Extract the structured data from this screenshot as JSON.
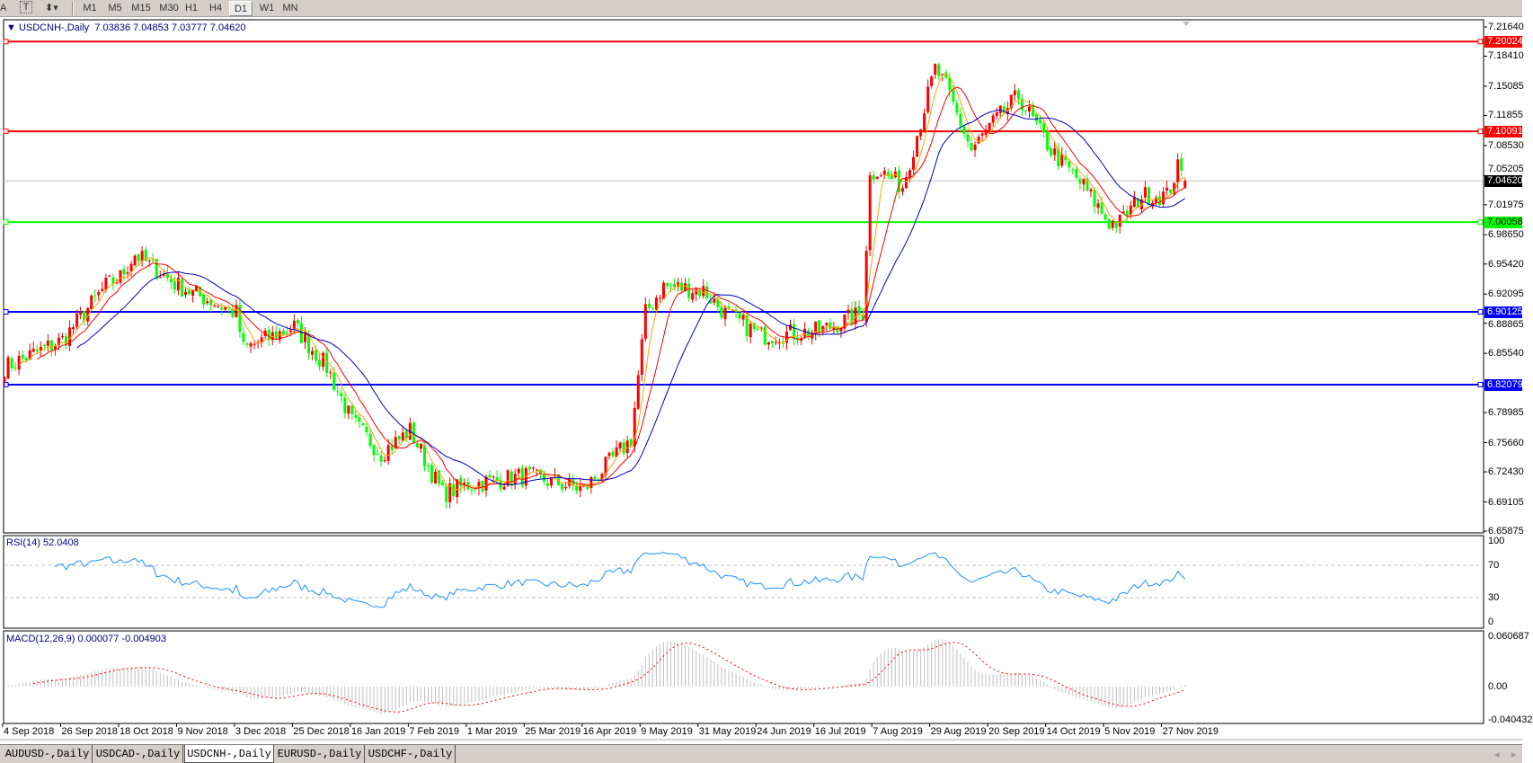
{
  "toolbar": {
    "left_icons": [
      "text-label-icon",
      "text-icon",
      "arrows-icon"
    ],
    "timeframes": [
      "M1",
      "M5",
      "M15",
      "M30",
      "H1",
      "H4",
      "D1",
      "W1",
      "MN"
    ],
    "active_timeframe": "D1"
  },
  "chart": {
    "title": "USDCNH-,Daily",
    "ohlc": "7.03836 7.04853 7.03777 7.04620",
    "open": 7.03836,
    "high": 7.04853,
    "low": 7.03777,
    "close": 7.0462
  },
  "price_axis": [
    "7.21640",
    "7.18410",
    "7.15085",
    "7.11855",
    "7.08530",
    "7.05205",
    "7.01975",
    "6.98650",
    "6.95420",
    "6.92095",
    "6.88865",
    "6.85540",
    "6.78985",
    "6.75660",
    "6.72430",
    "6.69105",
    "6.65875"
  ],
  "price_range": [
    6.65875,
    7.2164
  ],
  "hlines": [
    {
      "price": "7.20024",
      "color": "#ff0000"
    },
    {
      "price": "7.10091",
      "color": "#ff0000"
    },
    {
      "price": "7.00058",
      "color": "#00ff00"
    },
    {
      "price": "6.90125",
      "color": "#0000ff"
    },
    {
      "price": "6.82079",
      "color": "#0000ff"
    }
  ],
  "current_price": {
    "price": "7.04620",
    "color": "#000000"
  },
  "colors": {
    "bull": "#ff0000",
    "bear": "#00ff00",
    "ma_fast": "#ffa500",
    "ma_mid": "#ff0000",
    "ma_slow": "#0000c0",
    "rsi": "#1e90ff",
    "macd_hist": "#c0c0c0",
    "macd_signal": "#ff0000"
  },
  "rsi": {
    "label": "RSI(14) 52.0408",
    "axis": [
      "100",
      "70",
      "30",
      "0"
    ],
    "levels": [
      70,
      30
    ]
  },
  "macd": {
    "label": "MACD(12,26,9) 0.000077 -0.004903",
    "axis": [
      "0.060687",
      "0.00",
      "-0.040432"
    ],
    "range": [
      -0.040432,
      0.060687
    ]
  },
  "dates": [
    "4 Sep 2018",
    "26 Sep 2018",
    "18 Oct 2018",
    "9 Nov 2018",
    "3 Dec 2018",
    "25 Dec 2018",
    "16 Jan 2019",
    "7 Feb 2019",
    "1 Mar 2019",
    "25 Mar 2019",
    "16 Apr 2019",
    "9 May 2019",
    "31 May 2019",
    "24 Jun 2019",
    "16 Jul 2019",
    "7 Aug 2019",
    "29 Aug 2019",
    "20 Sep 2019",
    "14 Oct 2019",
    "5 Nov 2019",
    "27 Nov 2019"
  ],
  "tabs": [
    {
      "label": "AUDUSD-,Daily"
    },
    {
      "label": "USDCAD-,Daily"
    },
    {
      "label": "USDCNH-,Daily"
    },
    {
      "label": "EURUSD-,Daily"
    },
    {
      "label": "USDCHF-,Daily"
    }
  ],
  "active_tab": "USDCNH-,Daily",
  "chart_data": {
    "type": "candlestick",
    "symbol": "USDCNH-",
    "timeframe": "Daily",
    "ylim": [
      6.65875,
      7.2164
    ],
    "close_keypoints": [
      [
        "2018-09-04",
        6.84
      ],
      [
        "2018-09-26",
        6.87
      ],
      [
        "2018-10-12",
        6.93
      ],
      [
        "2018-10-18",
        6.94
      ],
      [
        "2018-10-24",
        6.965
      ],
      [
        "2018-11-09",
        6.93
      ],
      [
        "2018-12-03",
        6.9
      ],
      [
        "2018-12-05",
        6.86
      ],
      [
        "2018-12-25",
        6.885
      ],
      [
        "2019-01-07",
        6.84
      ],
      [
        "2019-01-16",
        6.78
      ],
      [
        "2019-01-28",
        6.745
      ],
      [
        "2019-02-07",
        6.77
      ],
      [
        "2019-02-20",
        6.7
      ],
      [
        "2019-03-01",
        6.71
      ],
      [
        "2019-03-25",
        6.72
      ],
      [
        "2019-04-16",
        6.705
      ],
      [
        "2019-05-03",
        6.76
      ],
      [
        "2019-05-09",
        6.9
      ],
      [
        "2019-05-16",
        6.93
      ],
      [
        "2019-05-31",
        6.925
      ],
      [
        "2019-06-10",
        6.9
      ],
      [
        "2019-06-24",
        6.875
      ],
      [
        "2019-07-16",
        6.88
      ],
      [
        "2019-08-01",
        6.9
      ],
      [
        "2019-08-05",
        7.05
      ],
      [
        "2019-08-07",
        7.06
      ],
      [
        "2019-08-16",
        7.04
      ],
      [
        "2019-08-29",
        7.17
      ],
      [
        "2019-09-03",
        7.15
      ],
      [
        "2019-09-12",
        7.08
      ],
      [
        "2019-09-20",
        7.11
      ],
      [
        "2019-10-01",
        7.14
      ],
      [
        "2019-10-14",
        7.08
      ],
      [
        "2019-10-25",
        7.04
      ],
      [
        "2019-11-05",
        7.0
      ],
      [
        "2019-11-08",
        7.0
      ],
      [
        "2019-11-18",
        7.03
      ],
      [
        "2019-11-27",
        7.03
      ],
      [
        "2019-12-02",
        7.06
      ],
      [
        "2019-12-04",
        7.0462
      ]
    ]
  }
}
